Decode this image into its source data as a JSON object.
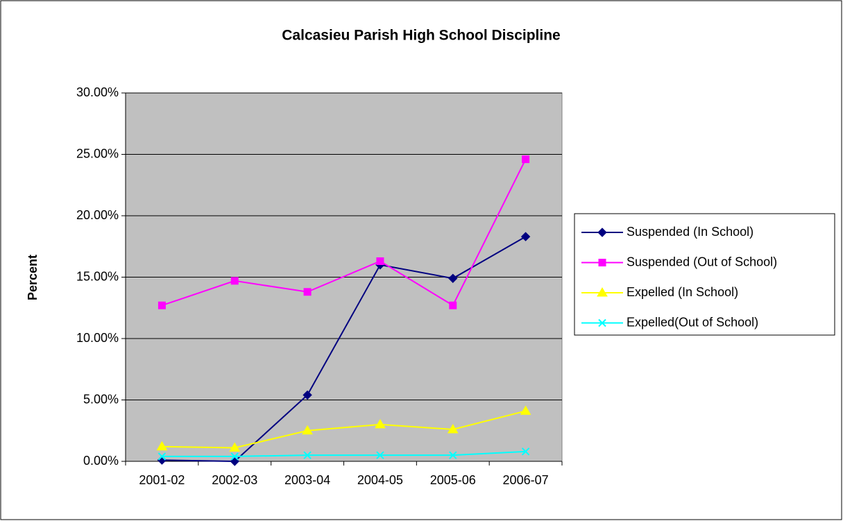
{
  "chart_data": {
    "type": "line",
    "title": "Calcasieu Parish High School Discipline",
    "y_label": "Percent",
    "categories": [
      "2001-02",
      "2002-03",
      "2003-04",
      "2004-05",
      "2005-06",
      "2006-07"
    ],
    "series": [
      {
        "name": "Suspended (In School)",
        "color": "#000080",
        "marker": "diamond",
        "values": [
          0.1,
          0.0,
          5.4,
          16.0,
          14.9,
          18.3
        ]
      },
      {
        "name": "Suspended (Out of School)",
        "color": "#FF00FF",
        "marker": "square",
        "values": [
          12.7,
          14.7,
          13.8,
          16.3,
          12.7,
          24.6
        ]
      },
      {
        "name": "Expelled (In School)",
        "color": "#FFFF00",
        "marker": "triangle",
        "values": [
          1.2,
          1.1,
          2.5,
          3.0,
          2.6,
          4.1
        ]
      },
      {
        "name": "Expelled(Out of School)",
        "color": "#00FFFF",
        "marker": "x",
        "values": [
          0.4,
          0.4,
          0.5,
          0.5,
          0.5,
          0.8
        ]
      }
    ],
    "ylim": [
      0,
      30
    ],
    "yticks": [
      {
        "value": 0,
        "label": "0.00%"
      },
      {
        "value": 5,
        "label": "5.00%"
      },
      {
        "value": 10,
        "label": "10.00%"
      },
      {
        "value": 15,
        "label": "15.00%"
      },
      {
        "value": 20,
        "label": "20.00%"
      },
      {
        "value": 25,
        "label": "25.00%"
      },
      {
        "value": 30,
        "label": "30.00%"
      }
    ],
    "grid": true,
    "legend": "right",
    "plot_background": "#C0C0C0"
  }
}
